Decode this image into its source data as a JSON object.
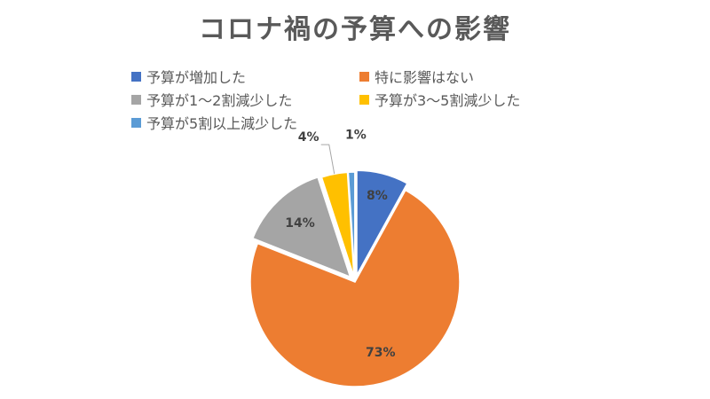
{
  "chart_data": {
    "type": "pie",
    "title": "コロナ禍の予算への影響",
    "legend_position": "top",
    "slices": [
      {
        "label": "予算が増加した",
        "value": 8,
        "display": "8%",
        "color": "#4472C4"
      },
      {
        "label": "特に影響はない",
        "value": 73,
        "display": "73%",
        "color": "#ED7D31"
      },
      {
        "label": "予算が1～2割減少した",
        "value": 14,
        "display": "14%",
        "color": "#A5A5A5"
      },
      {
        "label": "予算が3～5割減少した",
        "value": 4,
        "display": "4%",
        "color": "#FFC000"
      },
      {
        "label": "予算が5割以上減少した",
        "value": 1,
        "display": "1%",
        "color": "#5B9BD5"
      }
    ]
  }
}
